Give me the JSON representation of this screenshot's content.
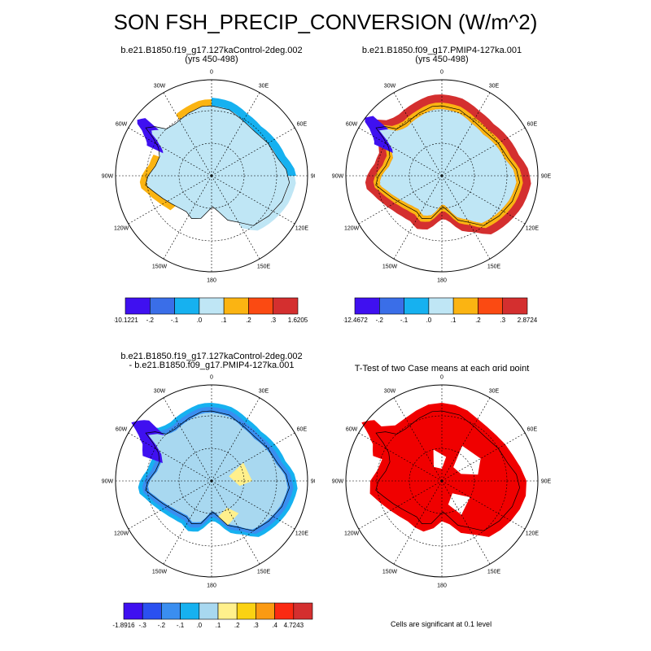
{
  "title": "SON FSH_PRECIP_CONVERSION (W/m^2)",
  "panels": [
    {
      "id": "p1",
      "title_lines": [
        "b.e21.B1850.f19_g17.127kaControl-2deg.002",
        "(yrs 450-498)"
      ],
      "colorbar": {
        "colors": [
          "#3f10f0",
          "#3a6ee8",
          "#16b1f0",
          "#bfe6f5",
          "#fbb412",
          "#fb4a12",
          "#d42f2f"
        ],
        "labels": [
          "-10.1221",
          "-.2",
          "-.1",
          ".0",
          ".1",
          ".2",
          ".3",
          "1.6205"
        ]
      }
    },
    {
      "id": "p2",
      "title_lines": [
        "b.e21.B1850.f09_g17.PMIP4-127ka.001",
        "(yrs 450-498)"
      ],
      "colorbar": {
        "colors": [
          "#3f10f0",
          "#3a6ee8",
          "#16b1f0",
          "#bfe6f5",
          "#fbb412",
          "#fb4a12",
          "#d42f2f"
        ],
        "labels": [
          "-12.4672",
          "-.2",
          "-.1",
          ".0",
          ".1",
          ".2",
          ".3",
          "2.8724"
        ]
      }
    },
    {
      "id": "p3",
      "title_lines": [
        "b.e21.B1850.f19_g17.127kaControl-2deg.002",
        "- b.e21.B1850.f09_g17.PMIP4-127ka.001"
      ],
      "colorbar": {
        "colors": [
          "#3f10f0",
          "#2a50f0",
          "#3a8ef0",
          "#16b1f0",
          "#a8d8f0",
          "#fff08c",
          "#fbd212",
          "#fb9a12",
          "#fb2a12",
          "#d42f2f"
        ],
        "labels": [
          "-1.8916",
          "-.3",
          "-.2",
          "-.1",
          ".0",
          ".1",
          ".2",
          ".3",
          ".4",
          "4.7243"
        ]
      }
    },
    {
      "id": "p4",
      "title_lines": [
        "T-Test of two Case means at each grid point"
      ],
      "footnote": "Cells are significant at 0.1 level"
    }
  ],
  "longitude_labels": [
    "0",
    "30E",
    "60E",
    "90E",
    "120E",
    "150E",
    "180",
    "150W",
    "120W",
    "90W",
    "60W",
    "30W"
  ],
  "colors": {
    "ice_light": "#bfe6f5",
    "ice_diff": "#a8d8f0",
    "significant": "#f00000"
  }
}
